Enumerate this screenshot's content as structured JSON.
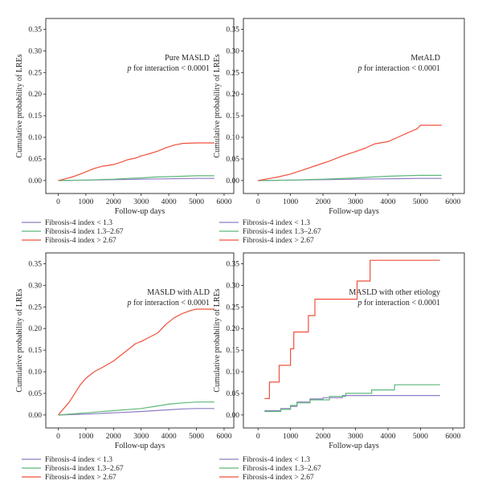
{
  "colors": {
    "low": "#8e7cc3",
    "mid": "#5cb87a",
    "high": "#f0503c",
    "frame": "#231f20"
  },
  "chart_data": [
    {
      "type": "line",
      "title": "",
      "annotation": "Pure MASLD",
      "p_label": "p for interaction < 0.0001",
      "xlabel": "Follow-up days",
      "ylabel": "Cumulative probability of LREs",
      "xlim": [
        -450,
        6350
      ],
      "ylim": [
        -0.03,
        0.375
      ],
      "xticks": [
        0,
        1000,
        2000,
        3000,
        4000,
        5000,
        6000
      ],
      "xtick_labels": [
        "0",
        "1000",
        "2000",
        "3000",
        "4000",
        "5000",
        "6000"
      ],
      "yticks": [
        0,
        0.05,
        0.1,
        0.15,
        0.2,
        0.25,
        0.3,
        0.35
      ],
      "ytick_labels": [
        "0.00",
        "0.05",
        "0.10",
        "0.15",
        "0.20",
        "0.25",
        "0.30",
        "0.35"
      ],
      "grid": false,
      "legend": "below",
      "series": [
        {
          "name": "Fibrosis-4 index < 1.3",
          "color_key": "low",
          "step": false,
          "x": [
            0,
            1000,
            2000,
            3000,
            4000,
            5000,
            5650
          ],
          "y": [
            0.0,
            0.001,
            0.002,
            0.003,
            0.004,
            0.005,
            0.005
          ]
        },
        {
          "name": "Fibrosis-4 index 1.3–2.67",
          "color_key": "mid",
          "step": false,
          "x": [
            0,
            1000,
            2000,
            2500,
            3000,
            3500,
            4000,
            4500,
            5000,
            5650
          ],
          "y": [
            0.0,
            0.001,
            0.003,
            0.005,
            0.006,
            0.008,
            0.009,
            0.01,
            0.011,
            0.011
          ]
        },
        {
          "name": "Fibrosis-4 index > 2.67",
          "color_key": "high",
          "step": false,
          "x": [
            0,
            200,
            500,
            800,
            1000,
            1300,
            1600,
            2000,
            2300,
            2500,
            2800,
            3000,
            3300,
            3600,
            3900,
            4200,
            4500,
            5000,
            5650
          ],
          "y": [
            0.0,
            0.003,
            0.008,
            0.015,
            0.02,
            0.028,
            0.033,
            0.037,
            0.043,
            0.048,
            0.052,
            0.057,
            0.062,
            0.068,
            0.076,
            0.082,
            0.086,
            0.087,
            0.087
          ]
        }
      ]
    },
    {
      "type": "line",
      "title": "",
      "annotation": "MetALD",
      "p_label": "p for interaction < 0.0001",
      "xlabel": "Follow-up days",
      "ylabel": "Cumulative probability of LREs",
      "xlim": [
        -450,
        6350
      ],
      "ylim": [
        -0.03,
        0.375
      ],
      "xticks": [
        0,
        1000,
        2000,
        3000,
        4000,
        5000,
        6000
      ],
      "xtick_labels": [
        "0",
        "1000",
        "2000",
        "3000",
        "4000",
        "5000",
        "6000"
      ],
      "yticks": [
        0,
        0.05,
        0.1,
        0.15,
        0.2,
        0.25,
        0.3,
        0.35
      ],
      "ytick_labels": [
        "0.00",
        "0.05",
        "0.10",
        "0.15",
        "0.20",
        "0.25",
        "0.30",
        "0.35"
      ],
      "grid": false,
      "legend": "below",
      "series": [
        {
          "name": "Fibrosis-4 index < 1.3",
          "color_key": "low",
          "step": false,
          "x": [
            0,
            1000,
            2000,
            3000,
            4000,
            5000,
            5650
          ],
          "y": [
            0.0,
            0.001,
            0.002,
            0.003,
            0.004,
            0.005,
            0.005
          ]
        },
        {
          "name": "Fibrosis-4 index 1.3–2.67",
          "color_key": "mid",
          "step": false,
          "x": [
            0,
            1000,
            2000,
            3000,
            3500,
            4000,
            4500,
            5000,
            5650
          ],
          "y": [
            0.0,
            0.001,
            0.003,
            0.006,
            0.008,
            0.01,
            0.011,
            0.012,
            0.012
          ]
        },
        {
          "name": "Fibrosis-4 index > 2.67",
          "color_key": "high",
          "step": false,
          "x": [
            0,
            300,
            600,
            1000,
            1400,
            1800,
            2200,
            2600,
            3000,
            3300,
            3600,
            4000,
            4300,
            4600,
            4900,
            5000,
            5650
          ],
          "y": [
            0.0,
            0.004,
            0.008,
            0.015,
            0.025,
            0.035,
            0.045,
            0.057,
            0.067,
            0.075,
            0.085,
            0.09,
            0.1,
            0.11,
            0.12,
            0.128,
            0.128
          ]
        }
      ]
    },
    {
      "type": "line",
      "title": "",
      "annotation": "MASLD with ALD",
      "p_label": "p for interaction < 0.0001",
      "xlabel": "Follow-up days",
      "ylabel": "Cumulative probability of LREs",
      "xlim": [
        -450,
        6350
      ],
      "ylim": [
        -0.03,
        0.375
      ],
      "xticks": [
        0,
        1000,
        2000,
        3000,
        4000,
        5000,
        6000
      ],
      "xtick_labels": [
        "0",
        "1000",
        "2000",
        "3000",
        "4000",
        "5000",
        "6000"
      ],
      "yticks": [
        0,
        0.05,
        0.1,
        0.15,
        0.2,
        0.25,
        0.3,
        0.35
      ],
      "ytick_labels": [
        "0.00",
        "0.05",
        "0.10",
        "0.15",
        "0.20",
        "0.25",
        "0.30",
        "0.35"
      ],
      "grid": false,
      "legend": "below",
      "series": [
        {
          "name": "Fibrosis-4 index < 1.3",
          "color_key": "low",
          "step": false,
          "x": [
            0,
            1000,
            2000,
            3000,
            4000,
            4500,
            5000,
            5650
          ],
          "y": [
            0.0,
            0.002,
            0.005,
            0.008,
            0.012,
            0.014,
            0.015,
            0.015
          ]
        },
        {
          "name": "Fibrosis-4 index 1.3–2.67",
          "color_key": "mid",
          "step": false,
          "x": [
            0,
            1000,
            2000,
            3000,
            3500,
            4000,
            4500,
            5000,
            5650
          ],
          "y": [
            0.0,
            0.005,
            0.01,
            0.015,
            0.02,
            0.025,
            0.028,
            0.03,
            0.03
          ]
        },
        {
          "name": "Fibrosis-4 index > 2.67",
          "color_key": "high",
          "step": false,
          "x": [
            0,
            200,
            400,
            600,
            800,
            1000,
            1300,
            1600,
            2000,
            2300,
            2600,
            2800,
            3000,
            3300,
            3600,
            3900,
            4200,
            4500,
            4800,
            5000,
            5650
          ],
          "y": [
            0.0,
            0.015,
            0.03,
            0.05,
            0.07,
            0.085,
            0.1,
            0.11,
            0.125,
            0.14,
            0.155,
            0.165,
            0.17,
            0.18,
            0.19,
            0.21,
            0.225,
            0.235,
            0.242,
            0.245,
            0.245
          ]
        }
      ]
    },
    {
      "type": "line",
      "title": "",
      "annotation": "MASLD with other etiology",
      "p_label": "p for interaction < 0.0001",
      "xlabel": "Follow-up days",
      "ylabel": "Cumulative probability of LREs",
      "xlim": [
        -450,
        6350
      ],
      "ylim": [
        -0.03,
        0.375
      ],
      "xticks": [
        0,
        1000,
        2000,
        3000,
        4000,
        5000,
        6000
      ],
      "xtick_labels": [
        "0",
        "1000",
        "2000",
        "3000",
        "4000",
        "5000",
        "6000"
      ],
      "yticks": [
        0,
        0.05,
        0.1,
        0.15,
        0.2,
        0.25,
        0.3,
        0.35
      ],
      "ytick_labels": [
        "0.00",
        "0.05",
        "0.10",
        "0.15",
        "0.20",
        "0.25",
        "0.30",
        "0.35"
      ],
      "grid": false,
      "legend": "below",
      "series": [
        {
          "name": "Fibrosis-4 index < 1.3",
          "color_key": "low",
          "step": true,
          "x": [
            200,
            700,
            1000,
            1200,
            1600,
            2000,
            2600,
            5600
          ],
          "y": [
            0.01,
            0.015,
            0.02,
            0.03,
            0.037,
            0.04,
            0.045,
            0.045
          ]
        },
        {
          "name": "Fibrosis-4 index 1.3–2.67",
          "color_key": "mid",
          "step": true,
          "x": [
            200,
            700,
            1000,
            1200,
            1600,
            2200,
            2700,
            3500,
            4200,
            5600
          ],
          "y": [
            0.008,
            0.013,
            0.022,
            0.028,
            0.035,
            0.043,
            0.05,
            0.058,
            0.07,
            0.07
          ]
        },
        {
          "name": "Fibrosis-4 index > 2.67",
          "color_key": "high",
          "step": true,
          "x": [
            200,
            350,
            650,
            1000,
            1100,
            1250,
            1550,
            1750,
            3050,
            3450,
            5600
          ],
          "y": [
            0.038,
            0.076,
            0.115,
            0.153,
            0.192,
            0.192,
            0.23,
            0.268,
            0.31,
            0.358,
            0.358
          ]
        }
      ]
    }
  ]
}
